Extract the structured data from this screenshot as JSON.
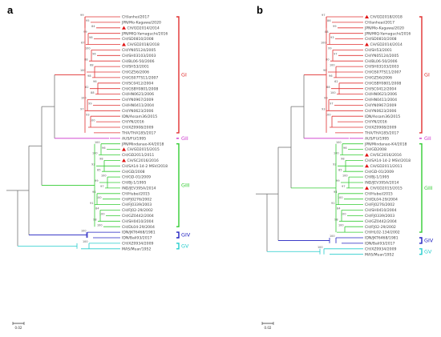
{
  "panels": [
    {
      "label": "a",
      "scale_label": "0.02",
      "groups": [
        {
          "name": "GI",
          "color": "#e03030"
        },
        {
          "name": "GII",
          "color": "#cc33cc"
        },
        {
          "name": "GIII",
          "color": "#33cc33"
        },
        {
          "name": "GIV",
          "color": "#2020c0"
        },
        {
          "name": "GV",
          "color": "#22cccc"
        }
      ],
      "leaves": [
        {
          "label": "CH/anhei/2017",
          "group": "GI",
          "marked": false,
          "boot": "99"
        },
        {
          "label": "JPN/Mo-Kagawa/2020",
          "group": "GI",
          "marked": false,
          "boot": "95"
        },
        {
          "label": "CH/GD2014/2014",
          "group": "GI",
          "marked": true,
          "boot": "84"
        },
        {
          "label": "JPN/MIQ-Yamaguchi/2016",
          "group": "GI",
          "marked": false,
          "boot": "99"
        },
        {
          "label": "CH/SD0810/2008",
          "group": "GI",
          "marked": false,
          "boot": "98"
        },
        {
          "label": "CH/GD2018/2018",
          "group": "GI",
          "marked": true,
          "boot": "67"
        },
        {
          "label": "CH/YN05124/2005",
          "group": "GI",
          "marked": false,
          "boot": "100"
        },
        {
          "label": "CH/SH03103/2003",
          "group": "GI",
          "marked": false,
          "boot": "96"
        },
        {
          "label": "CH/BL06-50/2006",
          "group": "GI",
          "marked": false,
          "boot": "88"
        },
        {
          "label": "CH/SH53/2001",
          "group": "GI",
          "marked": false,
          "boot": "68"
        },
        {
          "label": "CH/GZ56/2006",
          "group": "GI",
          "marked": false,
          "boot": "100"
        },
        {
          "label": "CH/GS07TS11/2007",
          "group": "GI",
          "marked": false,
          "boot": "98"
        },
        {
          "label": "CH/SC0412/2004",
          "group": "GI",
          "marked": false,
          "boot": "96"
        },
        {
          "label": "CH/GSBY0801/2008",
          "group": "GI",
          "marked": false,
          "boot": "62"
        },
        {
          "label": "CH/HN0621/2006",
          "group": "GI",
          "marked": false,
          "boot": "88"
        },
        {
          "label": "CH/YN0967/2009",
          "group": "GI",
          "marked": false,
          "boot": "100"
        },
        {
          "label": "CH/HN0411/2004",
          "group": "GI",
          "marked": false,
          "boot": "99"
        },
        {
          "label": "CH/YN0623/2006",
          "group": "GI",
          "marked": false,
          "boot": "97"
        },
        {
          "label": "IDN/Assam36/2015",
          "group": "GI",
          "marked": false,
          "boot": "93"
        },
        {
          "label": "CH/YN/2016",
          "group": "GI",
          "marked": false,
          "boot": "100"
        },
        {
          "label": "CH/XZ0908/2009",
          "group": "GI",
          "marked": false,
          "boot": ""
        },
        {
          "label": "THA/THA185/2017",
          "group": "GI",
          "marked": false,
          "boot": ""
        },
        {
          "label": "AUS/FU/1995",
          "group": "GII",
          "marked": false,
          "boot": ""
        },
        {
          "label": "JPN/Mindanao-K4/2018",
          "group": "GIII",
          "marked": false,
          "boot": "100"
        },
        {
          "label": "CH/GD2015/2015",
          "group": "GIII",
          "marked": true,
          "boot": "96"
        },
        {
          "label": "CH/GD2011/2011",
          "group": "GIII",
          "marked": false,
          "boot": "100"
        },
        {
          "label": "CH/SC2016/2016",
          "group": "GIII",
          "marked": true,
          "boot": "98"
        },
        {
          "label": "CH/SA14-14-2 MSV/2018",
          "group": "GIII",
          "marked": false,
          "boot": "92"
        },
        {
          "label": "CH/GD/2008",
          "group": "GIII",
          "marked": false,
          "boot": "85"
        },
        {
          "label": "CH/GD-01/2009",
          "group": "GIII",
          "marked": false,
          "boot": "100"
        },
        {
          "label": "CH/BJ-1/1995",
          "group": "GIII",
          "marked": false,
          "boot": "99"
        },
        {
          "label": "IND/JEV395A/2014",
          "group": "GIII",
          "marked": false,
          "boot": "97"
        },
        {
          "label": "CH/Hubei/2015",
          "group": "GIII",
          "marked": false,
          "boot": "94"
        },
        {
          "label": "CH/FJ0276/2002",
          "group": "GIII",
          "marked": false,
          "boot": "100"
        },
        {
          "label": "CH/FJ0339/2003",
          "group": "GIII",
          "marked": false,
          "boot": "91"
        },
        {
          "label": "CH/FJ02-29/2002",
          "group": "GIII",
          "marked": false,
          "boot": "84"
        },
        {
          "label": "CH/GZ0442/2004",
          "group": "GIII",
          "marked": false,
          "boot": "100"
        },
        {
          "label": "CH/SH0410/2004",
          "group": "GIII",
          "marked": false,
          "boot": "98"
        },
        {
          "label": "CH/DL04-29/2004",
          "group": "GIII",
          "marked": false,
          "boot": "100"
        },
        {
          "label": "IDN/JKT6468/1981",
          "group": "GIV",
          "marked": false,
          "boot": "100"
        },
        {
          "label": "IDN/Bali93/2017",
          "group": "GIV",
          "marked": false,
          "boot": ""
        },
        {
          "label": "CH/XZ0934/2009",
          "group": "GV",
          "marked": false,
          "boot": "100"
        },
        {
          "label": "MAS/Muar/1952",
          "group": "GV",
          "marked": false,
          "boot": ""
        }
      ]
    },
    {
      "label": "b",
      "scale_label": "0.02",
      "groups": [
        {
          "name": "GI",
          "color": "#e03030"
        },
        {
          "name": "GII",
          "color": "#cc33cc"
        },
        {
          "name": "GIII",
          "color": "#33cc33"
        },
        {
          "name": "GIV",
          "color": "#2020c0"
        },
        {
          "name": "GV",
          "color": "#22cccc"
        }
      ],
      "leaves": [
        {
          "label": "CH/GD2018/2018",
          "group": "GI",
          "marked": true,
          "boot": "97"
        },
        {
          "label": "CH/anheai/2017",
          "group": "GI",
          "marked": false,
          "boot": "86"
        },
        {
          "label": "JPN/Mo-Kagawa/2020",
          "group": "GI",
          "marked": false,
          "boot": "99"
        },
        {
          "label": "JPN/MIQ-Yamaguchi/2016",
          "group": "GI",
          "marked": false,
          "boot": "88"
        },
        {
          "label": "CH/SD0810/2008",
          "group": "GI",
          "marked": false,
          "boot": "93"
        },
        {
          "label": "CH/GD2014/2014",
          "group": "GI",
          "marked": true,
          "boot": "100"
        },
        {
          "label": "CH/SH53/2001",
          "group": "GI",
          "marked": false,
          "boot": "99"
        },
        {
          "label": "CH/YN05124/2005",
          "group": "GI",
          "marked": false,
          "boot": "97"
        },
        {
          "label": "CH/BL06-50/2006",
          "group": "GI",
          "marked": false,
          "boot": "80"
        },
        {
          "label": "CH/SH03103/2003",
          "group": "GI",
          "marked": false,
          "boot": "100"
        },
        {
          "label": "CH/GS07TS11/2007",
          "group": "GI",
          "marked": false,
          "boot": "98"
        },
        {
          "label": "CH/GZ56/2006",
          "group": "GI",
          "marked": false,
          "boot": "96"
        },
        {
          "label": "CH/GSBY0801/2008",
          "group": "GI",
          "marked": false,
          "boot": "62"
        },
        {
          "label": "CH/SC0412/2004",
          "group": "GI",
          "marked": false,
          "boot": "88"
        },
        {
          "label": "CH/HN0621/2006",
          "group": "GI",
          "marked": false,
          "boot": "100"
        },
        {
          "label": "CH/HN0411/2004",
          "group": "GI",
          "marked": false,
          "boot": "99"
        },
        {
          "label": "CH/YN0967/2009",
          "group": "GI",
          "marked": false,
          "boot": "97"
        },
        {
          "label": "CH/YN0623/2006",
          "group": "GI",
          "marked": false,
          "boot": "93"
        },
        {
          "label": "IDN/Assam36/2015",
          "group": "GI",
          "marked": false,
          "boot": "100"
        },
        {
          "label": "CH/YN/2016",
          "group": "GI",
          "marked": false,
          "boot": ""
        },
        {
          "label": "CH/XZ0908/2009",
          "group": "GI",
          "marked": false,
          "boot": ""
        },
        {
          "label": "THA/THA185/2017",
          "group": "GI",
          "marked": false,
          "boot": ""
        },
        {
          "label": "AUS/FU/1995",
          "group": "GII",
          "marked": false,
          "boot": ""
        },
        {
          "label": "JPN/Mindanao-K4/2018",
          "group": "GIII",
          "marked": false,
          "boot": "100"
        },
        {
          "label": "CH/GD2008",
          "group": "GIII",
          "marked": false,
          "boot": "96"
        },
        {
          "label": "CH/SC2016/2016",
          "group": "GIII",
          "marked": true,
          "boot": "100"
        },
        {
          "label": "CH/SA14-14-2 MSV/2018",
          "group": "GIII",
          "marked": false,
          "boot": "98"
        },
        {
          "label": "CH/GD2011/2011",
          "group": "GIII",
          "marked": true,
          "boot": "92"
        },
        {
          "label": "CH/GD-01/2009",
          "group": "GIII",
          "marked": false,
          "boot": "85"
        },
        {
          "label": "CH/BJ-1/1995",
          "group": "GIII",
          "marked": false,
          "boot": "100"
        },
        {
          "label": "IND/JEV395A/2014",
          "group": "GIII",
          "marked": false,
          "boot": "99"
        },
        {
          "label": "CH/GD2015/2015",
          "group": "GIII",
          "marked": true,
          "boot": "97"
        },
        {
          "label": "CH/Hubei/2015",
          "group": "GIII",
          "marked": false,
          "boot": "94"
        },
        {
          "label": "CH/DL04-29/2004",
          "group": "GIII",
          "marked": false,
          "boot": "100"
        },
        {
          "label": "CH/FJ0276/2002",
          "group": "GIII",
          "marked": false,
          "boot": "91"
        },
        {
          "label": "CH/SH0410/2004",
          "group": "GIII",
          "marked": false,
          "boot": "84"
        },
        {
          "label": "CH/FJ0339/2003",
          "group": "GIII",
          "marked": false,
          "boot": "100"
        },
        {
          "label": "CH/GZ0442/2004",
          "group": "GIII",
          "marked": false,
          "boot": "98"
        },
        {
          "label": "CH/FJ02-29/2002",
          "group": "GIII",
          "marked": false,
          "boot": "100"
        },
        {
          "label": "CH/HL02-134/2002",
          "group": "GIII",
          "marked": false,
          "boot": ""
        },
        {
          "label": "IDN/JKT6468/1981",
          "group": "GIV",
          "marked": false,
          "boot": "100"
        },
        {
          "label": "IDN/Bali93/2017",
          "group": "GIV",
          "marked": false,
          "boot": ""
        },
        {
          "label": "CH/XZ0934/2009",
          "group": "GV",
          "marked": false,
          "boot": "100"
        },
        {
          "label": "MAS/Muar/1952",
          "group": "GV",
          "marked": false,
          "boot": ""
        }
      ]
    }
  ]
}
